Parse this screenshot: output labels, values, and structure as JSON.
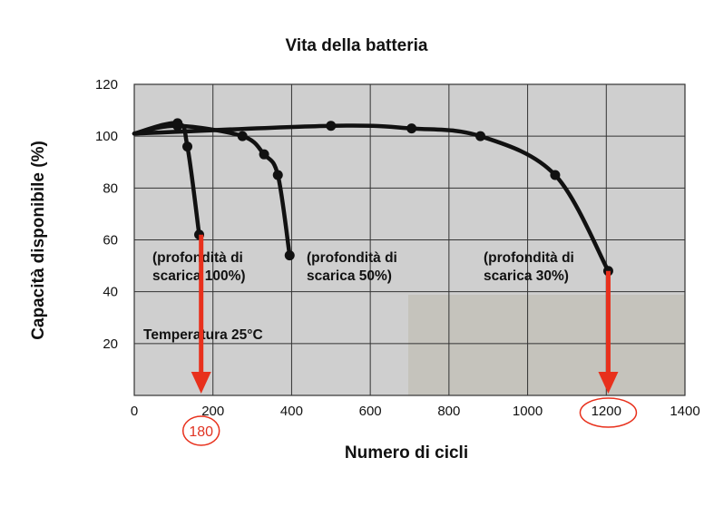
{
  "chart_data": {
    "type": "line",
    "title": "Vita della batteria",
    "xlabel": "Numero di cicli",
    "ylabel": "Capacità disponibile (%)",
    "xlim": [
      0,
      1400
    ],
    "ylim": [
      0,
      120
    ],
    "x_ticks": [
      "0",
      "200",
      "400",
      "600",
      "800",
      "1000",
      "1200",
      "1400"
    ],
    "y_ticks": [
      "20",
      "40",
      "60",
      "80",
      "100",
      "120"
    ],
    "grid": true,
    "legend": "none",
    "series": [
      {
        "annotation_lines": [
          "(profondità di",
          "scarica 100%)"
        ],
        "points": [
          [
            0,
            101
          ],
          [
            110,
            105
          ],
          [
            135,
            96
          ],
          [
            165,
            62
          ]
        ]
      },
      {
        "annotation_lines": [
          "(profondità di",
          "scarica 50%)"
        ],
        "points": [
          [
            0,
            101
          ],
          [
            110,
            104
          ],
          [
            275,
            100
          ],
          [
            330,
            93
          ],
          [
            365,
            85
          ],
          [
            395,
            54
          ]
        ]
      },
      {
        "annotation_lines": [
          "(profondità di",
          "scarica 30%)"
        ],
        "points": [
          [
            0,
            101
          ],
          [
            500,
            104
          ],
          [
            705,
            103
          ],
          [
            880,
            100
          ],
          [
            1070,
            85
          ],
          [
            1205,
            48
          ]
        ]
      }
    ],
    "annotations": {
      "temperature": "Temperatura 25°C"
    },
    "highlights": [
      {
        "x": 170,
        "label": "180",
        "color": "#e8301c"
      },
      {
        "x": 1205,
        "label": "1200",
        "color": "#e8301c"
      }
    ]
  }
}
